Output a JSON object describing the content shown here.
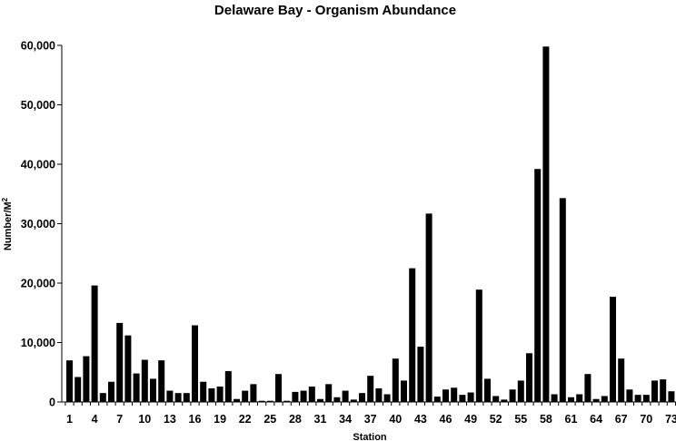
{
  "chart_data": {
    "type": "bar",
    "title": "Delaware Bay - Organism Abundance",
    "xlabel": "Station",
    "ylabel": "Number/M",
    "ylabel_superscript": "2",
    "ylim": [
      0,
      60000
    ],
    "yticks": [
      0,
      10000,
      20000,
      30000,
      40000,
      50000,
      60000
    ],
    "ytick_labels": [
      "0",
      "10,000",
      "20,000",
      "30,000",
      "40,000",
      "50,000",
      "60,000"
    ],
    "xtick_labels": [
      "1",
      "4",
      "7",
      "10",
      "13",
      "16",
      "19",
      "22",
      "25",
      "28",
      "31",
      "34",
      "37",
      "40",
      "43",
      "46",
      "49",
      "52",
      "55",
      "58",
      "61",
      "64",
      "67",
      "70",
      "73"
    ],
    "grid": false,
    "legend": false,
    "bar_color": "#000000",
    "categories": [
      1,
      2,
      3,
      4,
      5,
      6,
      7,
      8,
      9,
      10,
      11,
      12,
      13,
      14,
      15,
      16,
      17,
      18,
      19,
      20,
      21,
      22,
      23,
      24,
      25,
      26,
      27,
      28,
      29,
      30,
      31,
      32,
      33,
      34,
      35,
      36,
      37,
      38,
      39,
      40,
      41,
      42,
      43,
      44,
      45,
      46,
      47,
      48,
      49,
      50,
      51,
      52,
      53,
      54,
      55,
      56,
      57,
      58,
      59,
      60,
      61,
      62,
      63,
      64,
      65,
      66,
      67,
      68,
      69,
      70,
      71,
      72,
      73
    ],
    "values": [
      7000,
      4200,
      7700,
      19600,
      1500,
      3400,
      13300,
      11200,
      4800,
      7100,
      3900,
      7000,
      1900,
      1500,
      1500,
      12900,
      3400,
      2300,
      2600,
      5200,
      500,
      1900,
      3000,
      200,
      200,
      4700,
      200,
      1700,
      1900,
      2600,
      500,
      3000,
      800,
      1900,
      400,
      1500,
      4400,
      2300,
      1300,
      7300,
      3600,
      22500,
      9300,
      31700,
      900,
      2100,
      2400,
      1200,
      1600,
      18900,
      3900,
      1000,
      400,
      2100,
      3600,
      8200,
      39200,
      59800,
      1300,
      34300,
      800,
      1300,
      4700,
      500,
      1000,
      17700,
      7300,
      2100,
      1200,
      1200,
      3600,
      3800,
      1800
    ]
  }
}
